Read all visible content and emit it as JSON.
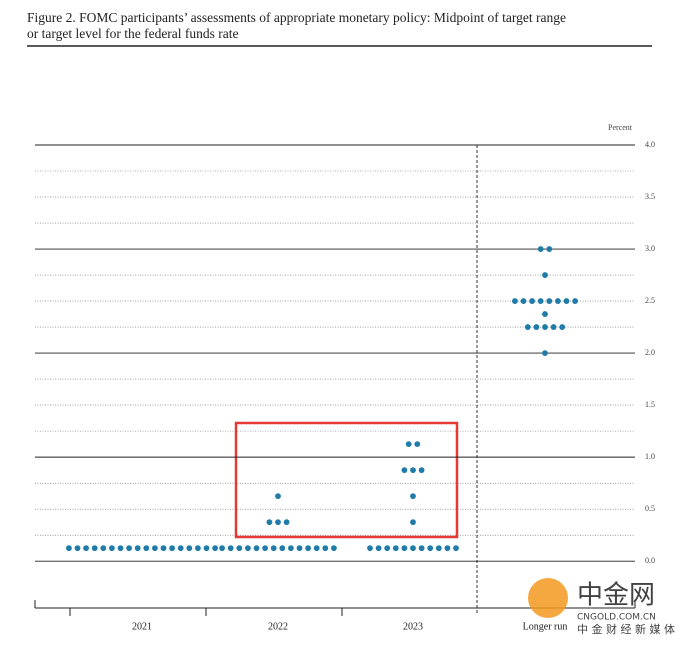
{
  "chart_data": {
    "type": "dot",
    "title_lines": [
      "Figure 2.  FOMC participants’ assessments of appropriate monetary policy:  Midpoint of target range",
      "or target level for the federal funds rate"
    ],
    "y_unit": "Percent",
    "color": "#1f7ca8",
    "ylim": [
      -0.45,
      4.0
    ],
    "yticks": [
      {
        "value": 0,
        "label": "0.0"
      },
      {
        "value": 0.5,
        "label": "0.5"
      },
      {
        "value": 1,
        "label": "1.0"
      },
      {
        "value": 1.5,
        "label": "1.5"
      },
      {
        "value": 2,
        "label": "2.0"
      },
      {
        "value": 2.5,
        "label": "2.5"
      },
      {
        "value": 3,
        "label": "3.0"
      },
      {
        "value": 3.5,
        "label": "3.5"
      },
      {
        "value": 4,
        "label": "4.0"
      }
    ],
    "minor_yticks": [
      0.25,
      0.75,
      1.25,
      1.75,
      2.25,
      2.75,
      3.25,
      3.75
    ],
    "groups": [
      {
        "category": "2021",
        "levels": [
          {
            "value": 0.125,
            "count": 18
          }
        ]
      },
      {
        "category": "2022",
        "levels": [
          {
            "value": 0.125,
            "count": 14
          },
          {
            "value": 0.375,
            "count": 3
          },
          {
            "value": 0.625,
            "count": 1
          }
        ]
      },
      {
        "category": "2023",
        "levels": [
          {
            "value": 0.125,
            "count": 11
          },
          {
            "value": 0.375,
            "count": 1
          },
          {
            "value": 0.625,
            "count": 1
          },
          {
            "value": 0.875,
            "count": 3
          },
          {
            "value": 1.125,
            "count": 2
          }
        ]
      },
      {
        "category": "Longer run",
        "levels": [
          {
            "value": 2.0,
            "count": 1
          },
          {
            "value": 2.25,
            "count": 5
          },
          {
            "value": 2.375,
            "count": 1
          },
          {
            "value": 2.5,
            "count": 8
          },
          {
            "value": 2.75,
            "count": 1
          },
          {
            "value": 3.0,
            "count": 2
          }
        ]
      }
    ],
    "watermark": [
      "中金网",
      "CNGOLD.COM.CN",
      "中 金 财 经 新 媒 体"
    ]
  }
}
